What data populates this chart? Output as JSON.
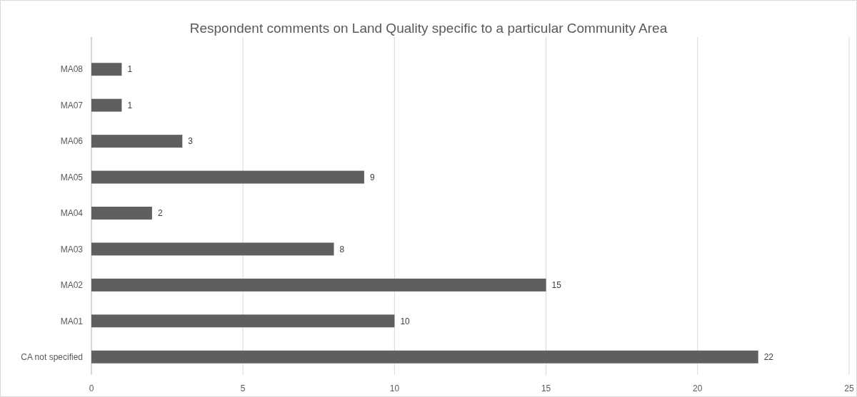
{
  "chart_data": {
    "type": "bar",
    "title": "Respondent comments on Land Quality specific to a particular Community Area",
    "orientation": "horizontal",
    "categories": [
      "MA08",
      "MA07",
      "MA06",
      "MA05",
      "MA04",
      "MA03",
      "MA02",
      "MA01",
      "CA not specified"
    ],
    "values": [
      1,
      1,
      3,
      9,
      2,
      8,
      15,
      10,
      22
    ],
    "color": "#5f5f5f",
    "xlim": [
      0,
      25
    ],
    "xticks": [
      0,
      5,
      10,
      15,
      20,
      25
    ],
    "grid": "x",
    "data_labels": true
  }
}
